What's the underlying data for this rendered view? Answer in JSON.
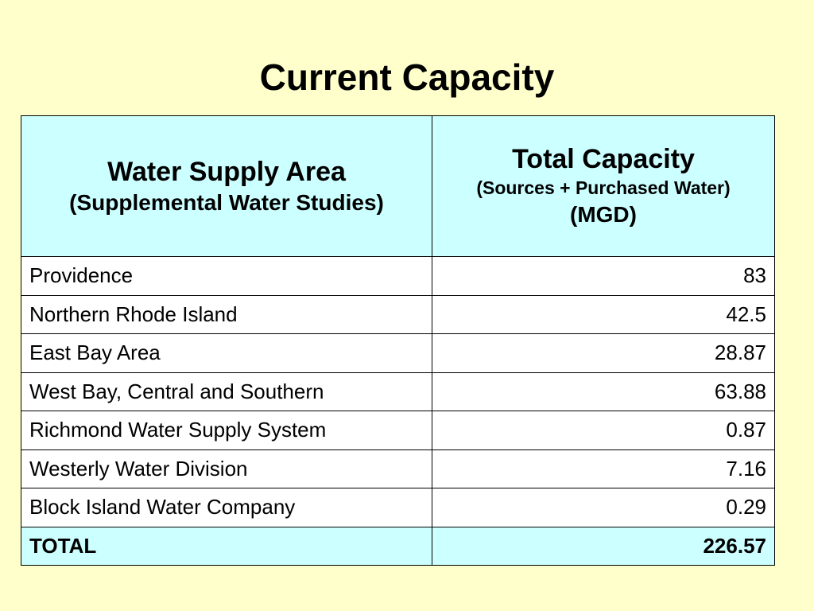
{
  "title": "Current Capacity",
  "table": {
    "headers": {
      "area": {
        "main": "Water Supply Area",
        "sub": "(Supplemental Water Studies)"
      },
      "capacity": {
        "main": "Total Capacity",
        "sub": "(Sources + Purchased Water)",
        "unit": "(MGD)"
      }
    },
    "rows": [
      {
        "area": "Providence",
        "capacity": "83"
      },
      {
        "area": "Northern Rhode Island",
        "capacity": "42.5"
      },
      {
        "area": "East Bay Area",
        "capacity": "28.87"
      },
      {
        "area": "West Bay, Central and Southern",
        "capacity": "63.88"
      },
      {
        "area": "Richmond Water Supply System",
        "capacity": "0.87"
      },
      {
        "area": "Westerly Water Division",
        "capacity": "7.16"
      },
      {
        "area": "Block Island Water Company",
        "capacity": "0.29"
      }
    ],
    "total": {
      "label": "TOTAL",
      "capacity": "226.57"
    }
  },
  "colors": {
    "background": "#ffffcc",
    "header_fill": "#ccffff",
    "cell_fill": "#ffffff",
    "border": "#000000"
  }
}
